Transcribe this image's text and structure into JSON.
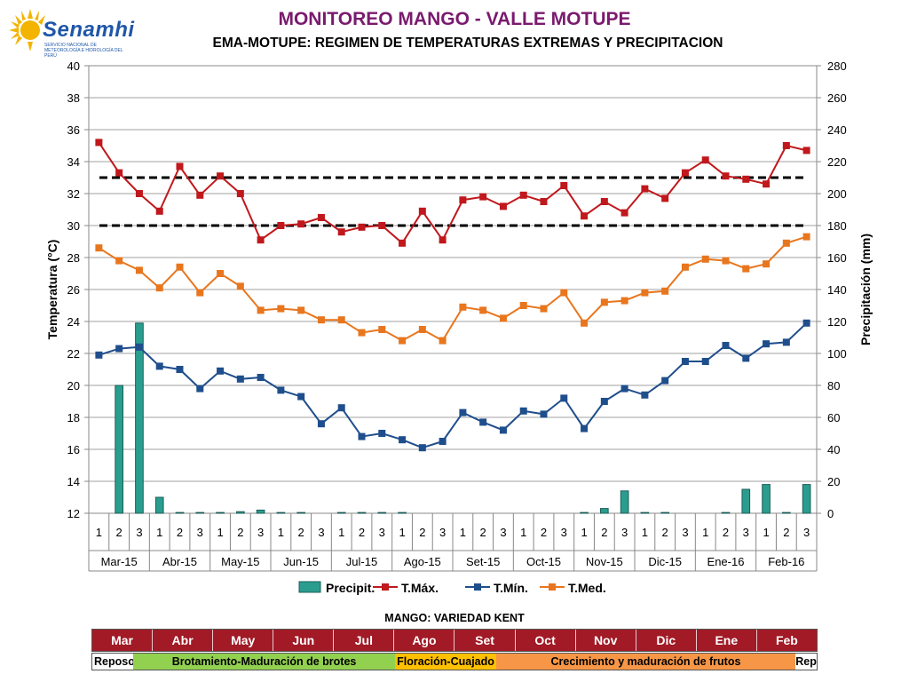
{
  "header": {
    "logo_text": "Senamhi",
    "logo_subtext": "SERVICIO NACIONAL DE METEOROLOGÍA E HIDROLOGÍA DEL PERÚ",
    "title": "MONITOREO MANGO - VALLE MOTUPE",
    "subtitle": "EMA-MOTUPE: REGIMEN DE TEMPERATURAS EXTREMAS Y PRECIPITACION"
  },
  "chart_data": {
    "type": "line",
    "ylabel": "Temperatura (°C)",
    "y2label": "Precipitación (mm)",
    "ylim": [
      12,
      40
    ],
    "y_ticks": [
      12,
      14,
      16,
      18,
      20,
      22,
      24,
      26,
      28,
      30,
      32,
      34,
      36,
      38,
      40
    ],
    "y2lim": [
      0,
      280
    ],
    "y2_ticks": [
      0,
      20,
      40,
      60,
      80,
      100,
      120,
      140,
      160,
      180,
      200,
      220,
      240,
      260,
      280
    ],
    "dekads": [
      "1",
      "2",
      "3",
      "1",
      "2",
      "3",
      "1",
      "2",
      "3",
      "1",
      "2",
      "3",
      "1",
      "2",
      "3",
      "1",
      "2",
      "3",
      "1",
      "2",
      "3",
      "1",
      "2",
      "3",
      "1",
      "2",
      "3",
      "1",
      "2",
      "3",
      "1",
      "2",
      "3",
      "1",
      "2",
      "3"
    ],
    "months": [
      "Mar-15",
      "Abr-15",
      "May-15",
      "Jun-15",
      "Jul-15",
      "Ago-15",
      "Set-15",
      "Oct-15",
      "Nov-15",
      "Dic-15",
      "Ene-16",
      "Feb-16"
    ],
    "reference_lines": [
      33,
      30
    ],
    "series": [
      {
        "name": "Precipit.",
        "kind": "bar",
        "axis": "right",
        "color": "#2a9d8f",
        "values": [
          0,
          80,
          119,
          10,
          0.5,
          0.5,
          0.5,
          1,
          2,
          0.5,
          0.5,
          0,
          0.5,
          0.5,
          0.5,
          0.5,
          0,
          0,
          0,
          0,
          0,
          0,
          0,
          0,
          0.5,
          3,
          14,
          0.5,
          0.5,
          0,
          0,
          0.5,
          15,
          18,
          0.5,
          18
        ]
      },
      {
        "name": "T.Máx.",
        "kind": "line",
        "axis": "left",
        "color": "#c0181c",
        "values": [
          35.2,
          33.3,
          32.0,
          30.9,
          33.7,
          31.9,
          33.1,
          32.0,
          29.1,
          30.0,
          30.1,
          30.5,
          29.6,
          29.9,
          30.0,
          28.9,
          30.9,
          29.1,
          31.6,
          31.8,
          31.2,
          31.9,
          31.5,
          32.5,
          30.6,
          31.5,
          30.8,
          32.3,
          31.7,
          33.3,
          34.1,
          33.1,
          32.9,
          32.6,
          35.0,
          34.7
        ]
      },
      {
        "name": "T.Mín.",
        "kind": "line",
        "axis": "left",
        "color": "#1f4e8c",
        "values": [
          21.9,
          22.3,
          22.4,
          21.2,
          21.0,
          19.8,
          20.9,
          20.4,
          20.5,
          19.7,
          19.3,
          17.6,
          18.6,
          16.8,
          17.0,
          16.6,
          16.1,
          16.5,
          18.3,
          17.7,
          17.2,
          18.4,
          18.2,
          19.2,
          17.3,
          19.0,
          19.8,
          19.4,
          20.3,
          21.5,
          21.5,
          22.5,
          21.7,
          22.6,
          22.7,
          23.9
        ]
      },
      {
        "name": "T.Med.",
        "kind": "line",
        "axis": "left",
        "color": "#e8761e",
        "values": [
          28.6,
          27.8,
          27.2,
          26.1,
          27.4,
          25.8,
          27.0,
          26.2,
          24.7,
          24.8,
          24.7,
          24.1,
          24.1,
          23.3,
          23.5,
          22.8,
          23.5,
          22.8,
          24.9,
          24.7,
          24.2,
          25.0,
          24.8,
          25.8,
          23.9,
          25.2,
          25.3,
          25.8,
          25.9,
          27.4,
          27.9,
          27.8,
          27.3,
          27.6,
          28.9,
          29.3
        ]
      }
    ]
  },
  "legend": {
    "precip": "Precipit.",
    "tmax": "T.Máx.",
    "tmin": "T.Mín.",
    "tmed": "T.Med."
  },
  "phenology": {
    "title": "MANGO: VARIEDAD KENT",
    "months": [
      "Mar",
      "Abr",
      "May",
      "Jun",
      "Jul",
      "Ago",
      "Set",
      "Oct",
      "Nov",
      "Dic",
      "Ene",
      "Feb"
    ],
    "month_color": "#a11a26",
    "phases": [
      {
        "label": "Reposo",
        "color": "#ffffff"
      },
      {
        "label": "Brotamiento-Maduración de brotes",
        "color": "#92d050"
      },
      {
        "label": "Floración-Cuajado",
        "color": "#ffc000"
      },
      {
        "label": "Crecimiento y maduración de frutos",
        "color": "#f79646"
      },
      {
        "label": "Rep",
        "color": "#ffffff"
      }
    ]
  }
}
